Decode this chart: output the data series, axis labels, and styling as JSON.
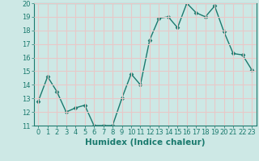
{
  "x": [
    0,
    1,
    2,
    3,
    4,
    5,
    6,
    7,
    8,
    9,
    10,
    11,
    12,
    13,
    14,
    15,
    16,
    17,
    18,
    19,
    20,
    21,
    22,
    23
  ],
  "y": [
    12.8,
    14.6,
    13.5,
    12.0,
    12.3,
    12.5,
    11.0,
    11.0,
    11.0,
    13.0,
    14.8,
    14.0,
    17.3,
    18.9,
    19.0,
    18.2,
    20.0,
    19.3,
    19.0,
    19.8,
    17.9,
    16.3,
    16.2,
    15.1
  ],
  "line_color": "#1a7a6e",
  "marker": "D",
  "marker_size": 2.5,
  "bg_color": "#cde8e5",
  "grid_color": "#e8c8c8",
  "xlabel": "Humidex (Indice chaleur)",
  "ylim": [
    11,
    20
  ],
  "xlim": [
    -0.5,
    23.5
  ],
  "yticks": [
    11,
    12,
    13,
    14,
    15,
    16,
    17,
    18,
    19,
    20
  ],
  "xticks": [
    0,
    1,
    2,
    3,
    4,
    5,
    6,
    7,
    8,
    9,
    10,
    11,
    12,
    13,
    14,
    15,
    16,
    17,
    18,
    19,
    20,
    21,
    22,
    23
  ],
  "tick_label_fontsize": 6.0,
  "xlabel_fontsize": 7.5,
  "linewidth": 1.0
}
